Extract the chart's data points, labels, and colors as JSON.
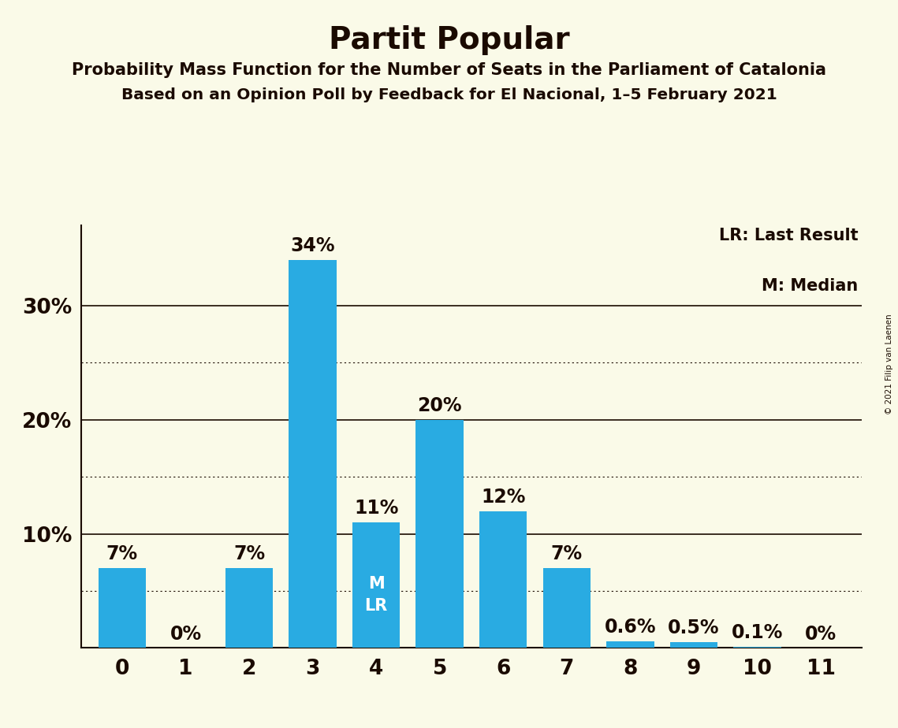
{
  "title": "Partit Popular",
  "subtitle1": "Probability Mass Function for the Number of Seats in the Parliament of Catalonia",
  "subtitle2": "Based on an Opinion Poll by Feedback for El Nacional, 1–5 February 2021",
  "copyright": "© 2021 Filip van Laenen",
  "categories": [
    0,
    1,
    2,
    3,
    4,
    5,
    6,
    7,
    8,
    9,
    10,
    11
  ],
  "values": [
    7,
    0,
    7,
    34,
    11,
    20,
    12,
    7,
    0.6,
    0.5,
    0.1,
    0
  ],
  "bar_color": "#29ABE2",
  "background_color": "#FAFAE8",
  "title_color": "#1a0a00",
  "axis_color": "#1a0a00",
  "legend_lr": "LR: Last Result",
  "legend_m": "M: Median",
  "ylim": [
    0,
    37
  ],
  "yticks": [
    0,
    10,
    20,
    30
  ],
  "ytick_labels": [
    "",
    "10%",
    "20%",
    "30%"
  ],
  "grid_solid": [
    10,
    20,
    30
  ],
  "grid_dotted": [
    5,
    15,
    25
  ],
  "bar_labels": [
    "7%",
    "0%",
    "7%",
    "34%",
    "11%",
    "20%",
    "12%",
    "7%",
    "0.6%",
    "0.5%",
    "0.1%",
    "0%"
  ],
  "median_bar_idx": 4,
  "inside_label": "M\nLR"
}
